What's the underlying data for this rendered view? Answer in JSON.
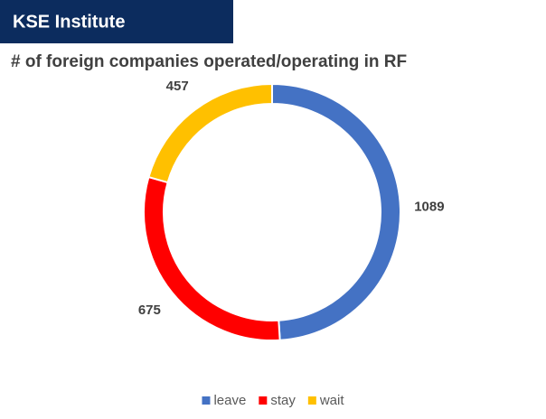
{
  "header": {
    "badge": "KSE Institute"
  },
  "chart_data": {
    "type": "donut",
    "title": "# of foreign companies operated/operating in RF",
    "categories": [
      "leave",
      "stay",
      "wait"
    ],
    "values": [
      1089,
      675,
      457
    ],
    "colors": [
      "#4472c4",
      "#ff0000",
      "#ffc000"
    ],
    "legend": "bottom"
  }
}
